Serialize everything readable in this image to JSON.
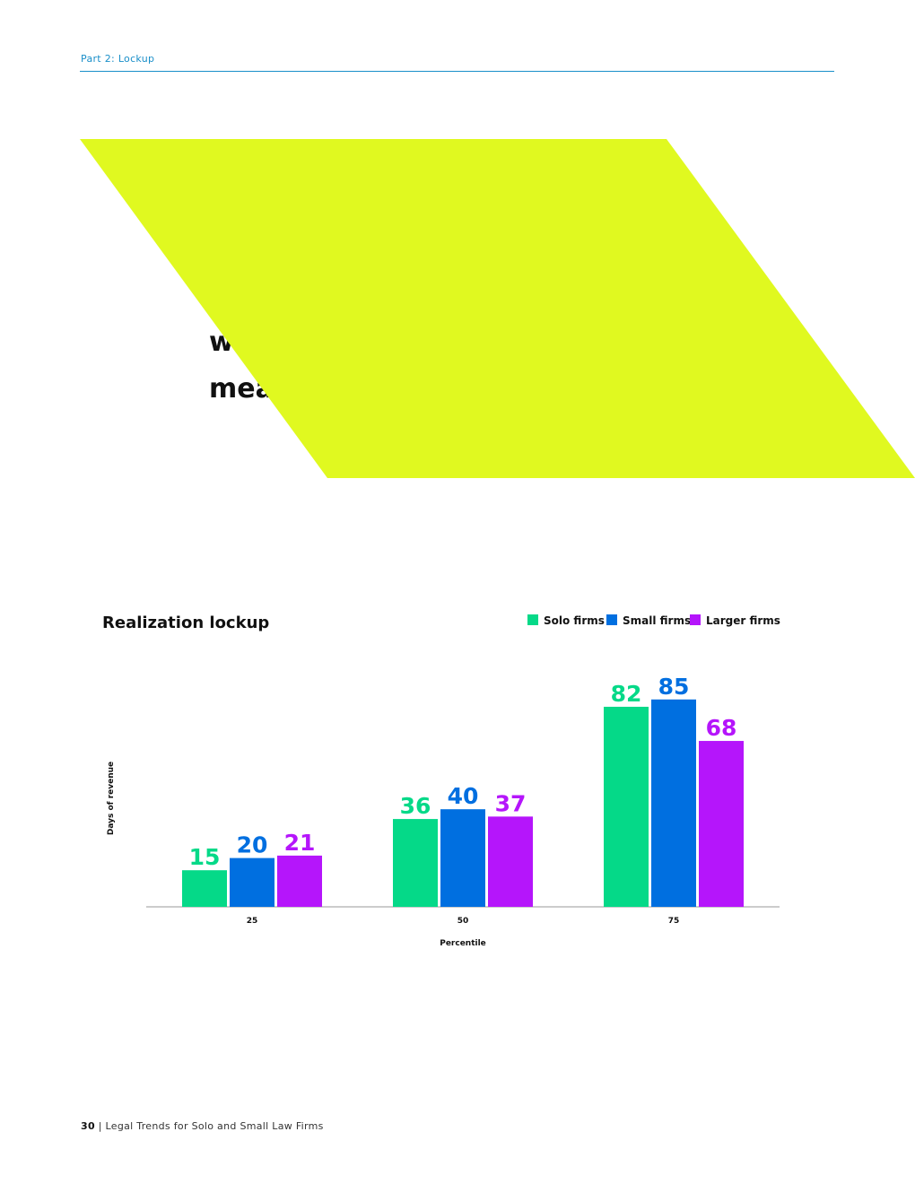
{
  "header": {
    "section": "Part 2: Lockup"
  },
  "quote": {
    "lines": [
      "w",
      "mea"
    ]
  },
  "chart_data": {
    "type": "bar",
    "title": "Realization lockup",
    "x_label": "Percentile",
    "y_label": "Days of revenue",
    "categories": [
      "25",
      "50",
      "75"
    ],
    "series": [
      {
        "name": "Solo firms",
        "color": "#05d988",
        "values": [
          15,
          36,
          82
        ]
      },
      {
        "name": "Small firms",
        "color": "#006fe0",
        "values": [
          20,
          40,
          85
        ]
      },
      {
        "name": "Larger firms",
        "color": "#b515fb",
        "values": [
          21,
          37,
          68
        ]
      }
    ],
    "ylim": [
      0,
      100
    ],
    "grid": false,
    "legend": "top-right"
  },
  "footer": {
    "page": "30",
    "title": "Legal Trends for Solo and Small Law Firms"
  }
}
